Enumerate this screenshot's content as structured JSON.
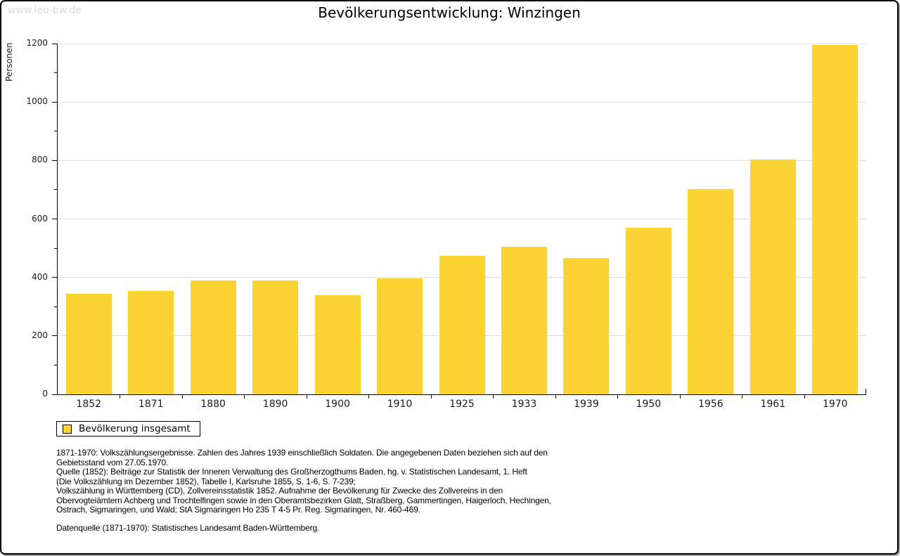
{
  "page": {
    "watermark": "www.leo-bw.de",
    "title": "Bevölkerungsentwicklung: Winzingen"
  },
  "colors": {
    "bar": "#FBD434",
    "grid": "#DDDDDD",
    "axis": "#000000",
    "watermark": "#D9D9D9"
  },
  "chart_data": {
    "type": "bar",
    "title": "Bevölkerungsentwicklung: Winzingen",
    "categories": [
      "1852",
      "1871",
      "1880",
      "1890",
      "1900",
      "1910",
      "1925",
      "1933",
      "1939",
      "1950",
      "1956",
      "1961",
      "1970"
    ],
    "series": [
      {
        "name": "Bevölkerung insgesamt",
        "values": [
          345,
          353,
          389,
          389,
          340,
          398,
          473,
          505,
          467,
          571,
          703,
          804,
          1196
        ]
      }
    ],
    "xlabel": "",
    "ylabel": "Personen",
    "ylim": [
      0,
      1200
    ],
    "ytick_step": 200,
    "yminor_step": 100,
    "grid": true,
    "legend_position": "bottom-left",
    "bar_color": "#FBD434"
  },
  "legend": {
    "label": "Bevölkerung insgesamt"
  },
  "footer": {
    "lines": [
      "1871-1970: Volkszählungsergebnisse. Zahlen des Jahres 1939 einschließlich Soldaten. Die angegebenen Daten beziehen sich auf den",
      "Gebietsstand vom 27.05.1970.",
      "Quelle (1852): Beiträge zur Statistik der Inneren Verwaltung des Großherzogthums Baden, hg. v. Statistischen Landesamt, 1. Heft",
      "(Die Volkszählung im Dezember 1852), Tabelle I, Karlsruhe 1855, S. 1-6, S. 7-239;",
      "Volkszählung in Württemberg (CD), Zollvereinsstatistik 1852. Aufnahme der Bevölkerung für Zwecke des Zollvereins in den",
      "Obervogteiämtern Achberg und Trochtelfingen sowie in den Oberamtsbezirken Glatt, Straßberg, Gammertingen, Haigerloch, Hechingen,",
      "Ostrach, Sigmaringen, und Wald; StA Sigmaringen Ho 235 T 4-5 Pr. Reg. Sigmaringen, Nr. 460-469.",
      "",
      "Datenquelle (1871-1970): Statistisches Landesamt Baden-Württemberg."
    ]
  }
}
